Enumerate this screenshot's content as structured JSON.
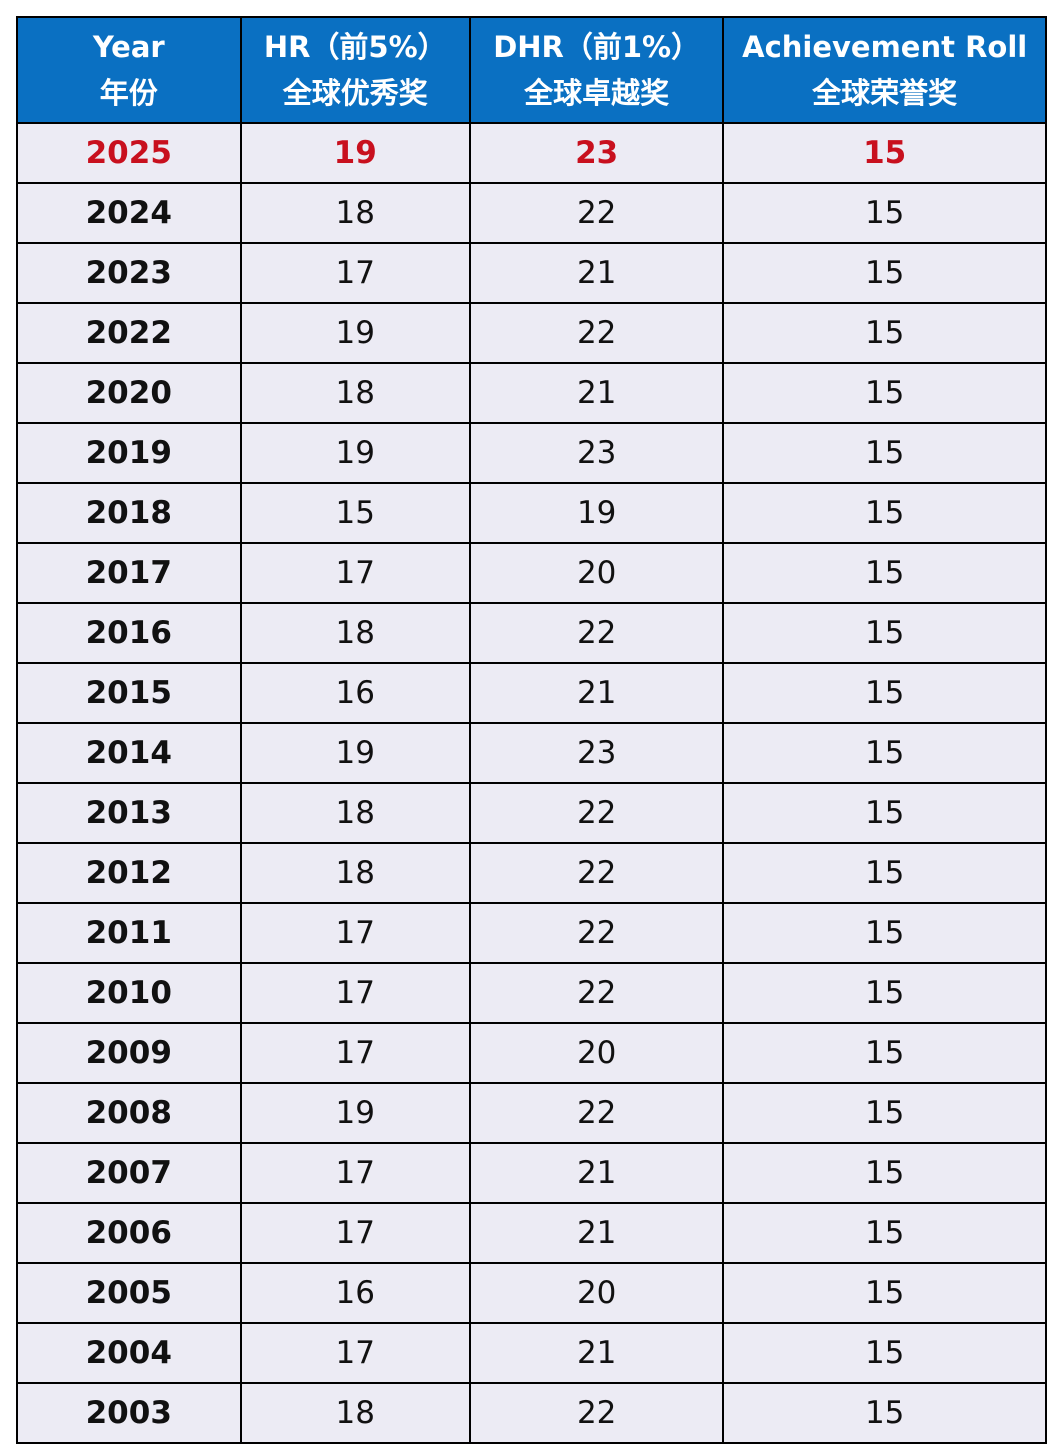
{
  "headers": [
    {
      "en": "Year",
      "zh": "年份"
    },
    {
      "en": "HR（前5%）",
      "zh": "全球优秀奖"
    },
    {
      "en": "DHR（前1%）",
      "zh": "全球卓越奖"
    },
    {
      "en": "Achievement Roll",
      "zh": "全球荣誉奖"
    }
  ],
  "highlight_color": "#c8101e",
  "header_color": "#0a70c2",
  "rows": [
    [
      "2025",
      "19",
      "23",
      "15"
    ],
    [
      "2024",
      "18",
      "22",
      "15"
    ],
    [
      "2023",
      "17",
      "21",
      "15"
    ],
    [
      "2022",
      "19",
      "22",
      "15"
    ],
    [
      "2020",
      "18",
      "21",
      "15"
    ],
    [
      "2019",
      "19",
      "23",
      "15"
    ],
    [
      "2018",
      "15",
      "19",
      "15"
    ],
    [
      "2017",
      "17",
      "20",
      "15"
    ],
    [
      "2016",
      "18",
      "22",
      "15"
    ],
    [
      "2015",
      "16",
      "21",
      "15"
    ],
    [
      "2014",
      "19",
      "23",
      "15"
    ],
    [
      "2013",
      "18",
      "22",
      "15"
    ],
    [
      "2012",
      "18",
      "22",
      "15"
    ],
    [
      "2011",
      "17",
      "22",
      "15"
    ],
    [
      "2010",
      "17",
      "22",
      "15"
    ],
    [
      "2009",
      "17",
      "20",
      "15"
    ],
    [
      "2008",
      "19",
      "22",
      "15"
    ],
    [
      "2007",
      "17",
      "21",
      "15"
    ],
    [
      "2006",
      "17",
      "21",
      "15"
    ],
    [
      "2005",
      "16",
      "20",
      "15"
    ],
    [
      "2004",
      "17",
      "21",
      "15"
    ],
    [
      "2003",
      "18",
      "22",
      "15"
    ]
  ]
}
